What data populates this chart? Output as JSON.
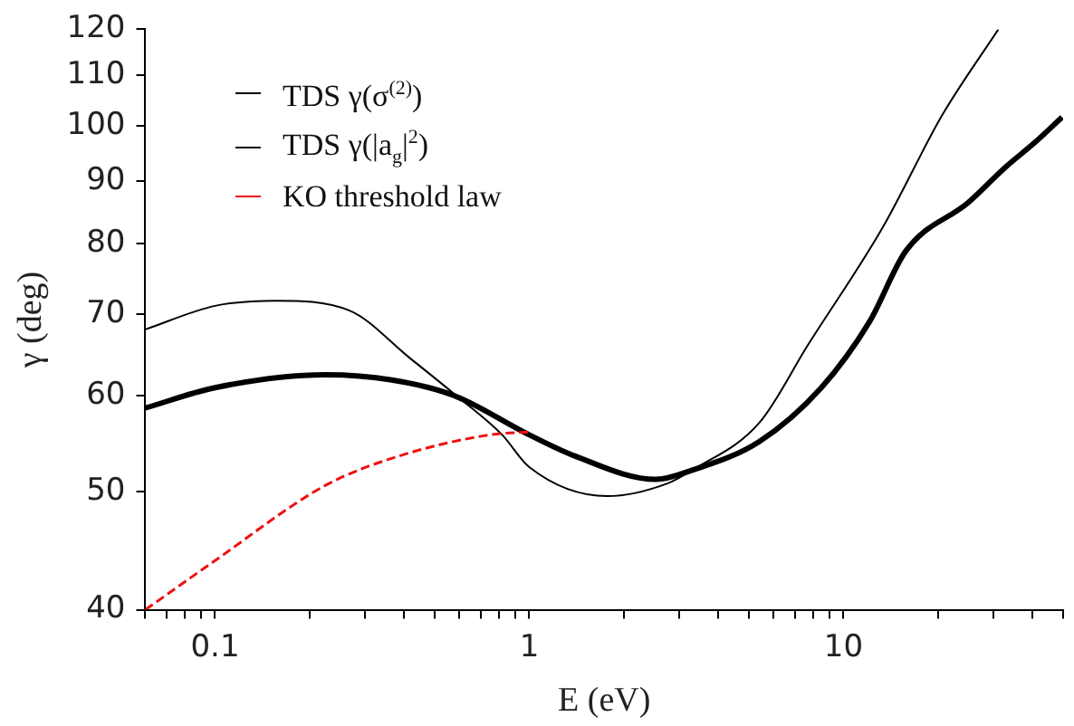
{
  "chart_data": {
    "type": "line",
    "xlabel": "E (eV)",
    "ylabel": "γ (deg)",
    "log": "xy",
    "grid": false,
    "legend": "top left",
    "marker": "none",
    "xlim": [
      0.06,
      50
    ],
    "ylim": [
      40,
      120
    ],
    "xticks": [
      {
        "value": 0.06,
        "label": null
      },
      {
        "value": 0.07,
        "label": null
      },
      {
        "value": 0.08,
        "label": null
      },
      {
        "value": 0.09,
        "label": null
      },
      0.1,
      {
        "value": 0.2,
        "label": null
      },
      {
        "value": 0.3,
        "label": null
      },
      {
        "value": 0.4,
        "label": null
      },
      {
        "value": 0.5,
        "label": null
      },
      {
        "value": 0.6,
        "label": null
      },
      {
        "value": 0.7,
        "label": null
      },
      {
        "value": 0.8,
        "label": null
      },
      {
        "value": 0.9,
        "label": null
      },
      1,
      {
        "value": 2,
        "label": null
      },
      {
        "value": 3,
        "label": null
      },
      {
        "value": 4,
        "label": null
      },
      {
        "value": 5,
        "label": null
      },
      {
        "value": 6,
        "label": null
      },
      {
        "value": 7,
        "label": null
      },
      {
        "value": 8,
        "label": null
      },
      {
        "value": 9,
        "label": null
      },
      10,
      {
        "value": 20,
        "label": null
      },
      {
        "value": 30,
        "label": null
      },
      {
        "value": 40,
        "label": null
      },
      {
        "value": 50,
        "label": null
      }
    ],
    "yticks": [
      40,
      50,
      60,
      70,
      80,
      90,
      100,
      110,
      120
    ],
    "series": [
      {
        "name": "TDS γ(σ$^{(2)}$)",
        "color": "#000000",
        "line_style": "solid",
        "x": [
          0.06,
          0.1,
          0.224,
          0.365,
          0.576,
          1,
          1.4,
          2.53,
          3.3,
          5.4,
          8.5,
          12.1,
          15.8,
          25,
          32.7,
          40.9,
          49.6
        ],
        "values": [
          58.6,
          60.9,
          62.4,
          61.8,
          60.0,
          55.7,
          53.5,
          51.2,
          52.1,
          55.0,
          60.9,
          69.0,
          78.9,
          86.5,
          92.4,
          97.0,
          101.6
        ]
      },
      {
        "name": "TDS γ(|a$_{g}$|$^{2}$)",
        "color": "#000000",
        "line_style": "solid",
        "x": [
          0.06,
          0.1,
          0.156,
          0.267,
          0.417,
          0.576,
          0.82,
          1,
          1.77,
          2.75,
          3.3,
          5.4,
          7.7,
          13.3,
          20.7,
          31.1
        ],
        "values": [
          68.0,
          71.1,
          71.8,
          70.5,
          64.4,
          60.2,
          55.7,
          52.4,
          49.6,
          50.8,
          52.1,
          57.0,
          66.0,
          82.4,
          102.2,
          120
        ]
      },
      {
        "name": "KO threshold law",
        "color": "#ee1111",
        "line_style": "dashed",
        "x": [
          0.06,
          0.1,
          0.224,
          0.384,
          0.75,
          1
        ],
        "values": [
          40,
          43.9,
          50.6,
          53.5,
          55.7,
          56.0
        ]
      }
    ]
  }
}
